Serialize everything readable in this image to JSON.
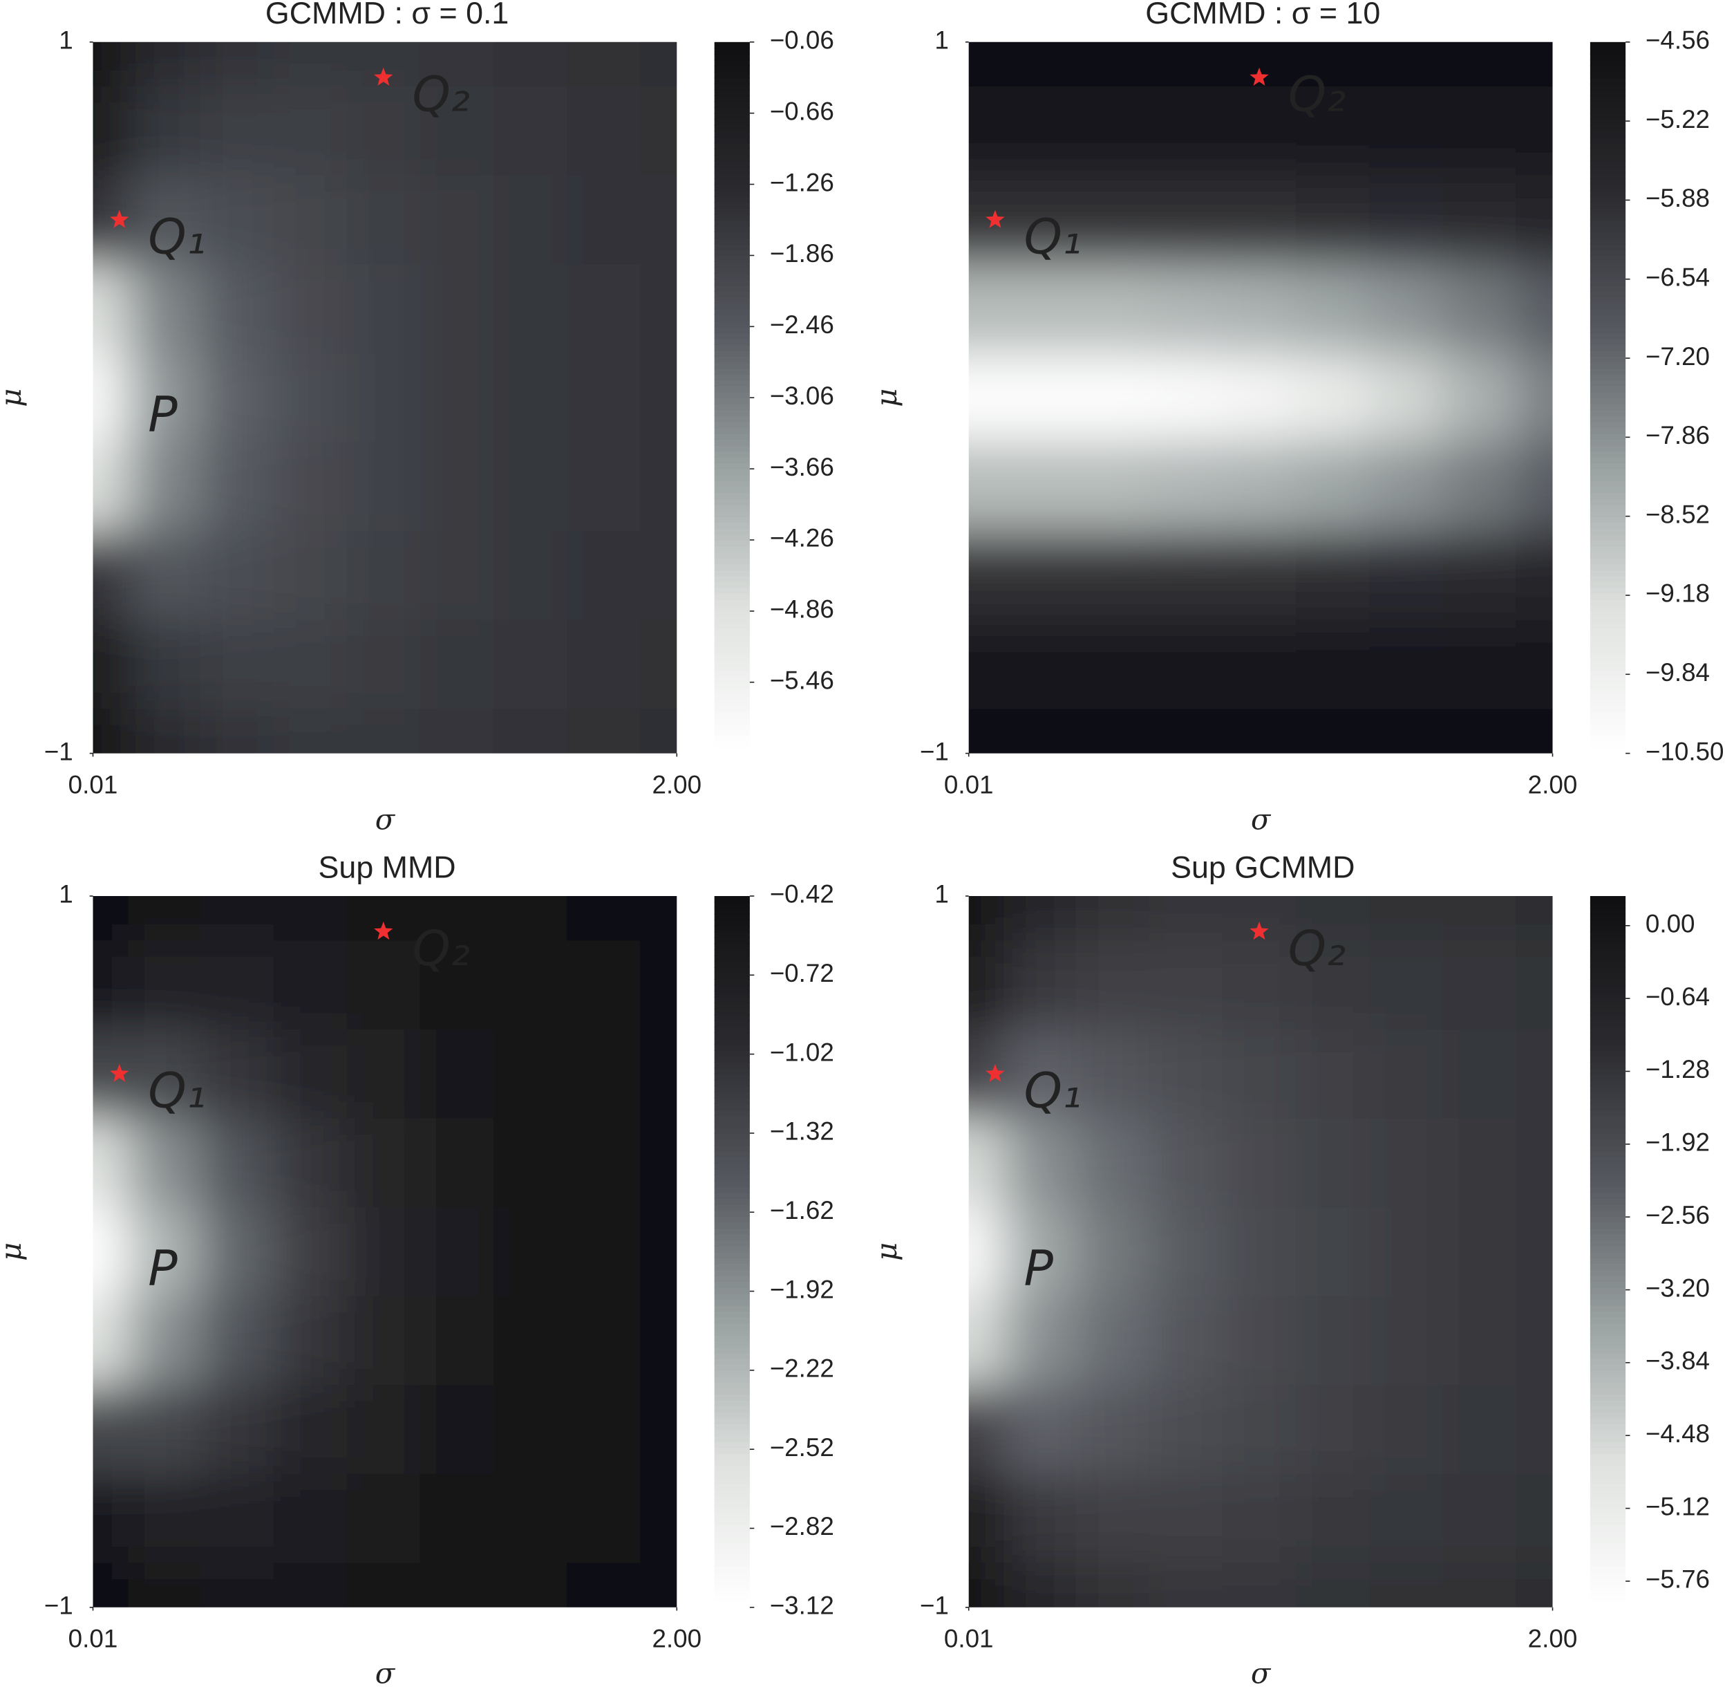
{
  "chart_data": [
    {
      "type": "contour",
      "title": "GCMMD : σ = 0.1",
      "xlabel": "σ",
      "ylabel": "μ",
      "xlim": [
        0.01,
        2
      ],
      "xticks": [
        {
          "value": 0.01,
          "label": "0.01"
        },
        {
          "value": 2,
          "label": "2.00"
        }
      ],
      "ylim": [
        -1,
        1
      ],
      "yticks": [
        {
          "value": -1,
          "label": "−1"
        },
        1
      ],
      "x": [
        0.01,
        0.25,
        0.5,
        0.75,
        1,
        1.25,
        1.5,
        1.75,
        2
      ],
      "y": [
        1,
        0.75,
        0.5,
        0.25,
        0,
        -0.25,
        -0.5,
        -0.75,
        -1
      ],
      "z": [
        [
          -0.3,
          -1.2,
          -1.5,
          -1.6,
          -1.6,
          -1.55,
          -1.5,
          -1.45,
          -1.4
        ],
        [
          -0.5,
          -1.6,
          -1.8,
          -1.8,
          -1.7,
          -1.6,
          -1.55,
          -1.5,
          -1.45
        ],
        [
          -1.5,
          -2.4,
          -2.2,
          -2.0,
          -1.8,
          -1.7,
          -1.6,
          -1.5,
          -1.5
        ],
        [
          -4.8,
          -3.2,
          -2.5,
          -2.1,
          -1.9,
          -1.7,
          -1.6,
          -1.55,
          -1.5
        ],
        [
          -5.8,
          -3.5,
          -2.6,
          -2.2,
          -1.9,
          -1.7,
          -1.6,
          -1.55,
          -1.5
        ],
        [
          -4.8,
          -3.2,
          -2.5,
          -2.1,
          -1.9,
          -1.7,
          -1.6,
          -1.55,
          -1.5
        ],
        [
          -1.5,
          -2.4,
          -2.2,
          -2.0,
          -1.8,
          -1.7,
          -1.6,
          -1.5,
          -1.5
        ],
        [
          -0.5,
          -1.6,
          -1.8,
          -1.8,
          -1.7,
          -1.6,
          -1.55,
          -1.5,
          -1.45
        ],
        [
          -0.3,
          -1.2,
          -1.5,
          -1.6,
          -1.6,
          -1.55,
          -1.5,
          -1.45,
          -1.4
        ]
      ],
      "zlim": [
        -6.06,
        -0.06
      ],
      "zticks": [
        {
          "value": -0.06,
          "label": "−0.06"
        },
        {
          "value": -0.66,
          "label": "−0.66"
        },
        {
          "value": -1.26,
          "label": "−1.26"
        },
        {
          "value": -1.86,
          "label": "−1.86"
        },
        {
          "value": -2.46,
          "label": "−2.46"
        },
        {
          "value": -3.06,
          "label": "−3.06"
        },
        {
          "value": -3.66,
          "label": "−3.66"
        },
        {
          "value": -4.26,
          "label": "−4.26"
        },
        {
          "value": -4.86,
          "label": "−4.86"
        },
        {
          "value": -5.46,
          "label": "−5.46"
        }
      ],
      "colormap": [
        "#ffffff",
        "#dfe2df",
        "#9aa2a2",
        "#55585e",
        "#2a2a2e",
        "#101012"
      ],
      "points": [
        {
          "label": "P",
          "x": 0.1,
          "y": 0,
          "color": "#ffffff",
          "marker": "none"
        },
        {
          "label": "Q₁",
          "x": 0.1,
          "y": 0.5,
          "color": "#f03030",
          "marker": "star"
        },
        {
          "label": "Q₂",
          "x": 1,
          "y": 0.9,
          "color": "#f03030",
          "marker": "star"
        }
      ]
    },
    {
      "type": "contour",
      "title": "GCMMD : σ = 10",
      "xlabel": "σ",
      "ylabel": "μ",
      "xlim": [
        0.01,
        2
      ],
      "xticks": [
        {
          "value": 0.01,
          "label": "0.01"
        },
        {
          "value": 2,
          "label": "2.00"
        }
      ],
      "ylim": [
        -1,
        1
      ],
      "yticks": [
        {
          "value": -1,
          "label": "−1"
        },
        1
      ],
      "x": [
        0.01,
        0.25,
        0.5,
        0.75,
        1,
        1.25,
        1.5,
        1.75,
        2
      ],
      "y": [
        1,
        0.75,
        0.5,
        0.25,
        0,
        -0.25,
        -0.5,
        -0.75,
        -1
      ],
      "z": [
        [
          -4.6,
          -4.6,
          -4.6,
          -4.6,
          -4.6,
          -4.6,
          -4.6,
          -4.6,
          -4.6
        ],
        [
          -4.9,
          -4.9,
          -4.9,
          -4.9,
          -4.9,
          -4.9,
          -4.9,
          -4.9,
          -4.9
        ],
        [
          -5.9,
          -5.9,
          -5.9,
          -5.9,
          -5.9,
          -5.85,
          -5.8,
          -5.7,
          -5.6
        ],
        [
          -8.6,
          -8.6,
          -8.6,
          -8.5,
          -8.4,
          -8.2,
          -7.9,
          -7.5,
          -7.0
        ],
        [
          -10.4,
          -10.4,
          -10.4,
          -10.3,
          -10.1,
          -9.7,
          -9.1,
          -8.4,
          -7.6
        ],
        [
          -8.6,
          -8.6,
          -8.6,
          -8.5,
          -8.4,
          -8.2,
          -7.9,
          -7.5,
          -7.0
        ],
        [
          -5.9,
          -5.9,
          -5.9,
          -5.9,
          -5.9,
          -5.85,
          -5.8,
          -5.7,
          -5.6
        ],
        [
          -4.9,
          -4.9,
          -4.9,
          -4.9,
          -4.9,
          -4.9,
          -4.9,
          -4.9,
          -4.9
        ],
        [
          -4.6,
          -4.6,
          -4.6,
          -4.6,
          -4.6,
          -4.6,
          -4.6,
          -4.6,
          -4.6
        ]
      ],
      "zlim": [
        -10.5,
        -4.56
      ],
      "zticks": [
        {
          "value": -4.56,
          "label": "−4.56"
        },
        {
          "value": -5.22,
          "label": "−5.22"
        },
        {
          "value": -5.88,
          "label": "−5.88"
        },
        {
          "value": -6.54,
          "label": "−6.54"
        },
        {
          "value": -7.2,
          "label": "−7.20"
        },
        {
          "value": -7.86,
          "label": "−7.86"
        },
        {
          "value": -8.52,
          "label": "−8.52"
        },
        {
          "value": -9.18,
          "label": "−9.18"
        },
        {
          "value": -9.84,
          "label": "−9.84"
        },
        {
          "value": -10.5,
          "label": "−10.50"
        }
      ],
      "colormap": [
        "#ffffff",
        "#dfe2df",
        "#9aa2a2",
        "#55585e",
        "#2a2a2e",
        "#101012"
      ],
      "points": [
        {
          "label": "Q₁",
          "x": 0.1,
          "y": 0.5,
          "color": "#f03030",
          "marker": "star"
        },
        {
          "label": "Q₂",
          "x": 1,
          "y": 0.9,
          "color": "#f03030",
          "marker": "star"
        }
      ]
    },
    {
      "type": "contour",
      "title": "Sup MMD",
      "xlabel": "σ",
      "ylabel": "μ",
      "xlim": [
        0.01,
        2
      ],
      "xticks": [
        {
          "value": 0.01,
          "label": "0.01"
        },
        {
          "value": 2,
          "label": "2.00"
        }
      ],
      "ylim": [
        -1,
        1
      ],
      "yticks": [
        {
          "value": -1,
          "label": "−1"
        },
        1
      ],
      "x": [
        0.01,
        0.25,
        0.5,
        0.75,
        1,
        1.25,
        1.5,
        1.75,
        2
      ],
      "y": [
        1,
        0.75,
        0.5,
        0.25,
        0,
        -0.25,
        -0.5,
        -0.75,
        -1
      ],
      "z": [
        [
          -0.45,
          -0.55,
          -0.6,
          -0.58,
          -0.53,
          -0.5,
          -0.47,
          -0.45,
          -0.43
        ],
        [
          -0.6,
          -0.8,
          -0.8,
          -0.7,
          -0.62,
          -0.55,
          -0.5,
          -0.46,
          -0.44
        ],
        [
          -1.3,
          -1.3,
          -1.1,
          -0.9,
          -0.75,
          -0.6,
          -0.52,
          -0.47,
          -0.44
        ],
        [
          -2.6,
          -1.9,
          -1.45,
          -1.1,
          -0.85,
          -0.65,
          -0.55,
          -0.48,
          -0.45
        ],
        [
          -3.1,
          -2.2,
          -1.6,
          -1.2,
          -0.9,
          -0.7,
          -0.55,
          -0.48,
          -0.45
        ],
        [
          -2.6,
          -1.9,
          -1.45,
          -1.1,
          -0.85,
          -0.65,
          -0.55,
          -0.48,
          -0.45
        ],
        [
          -1.3,
          -1.3,
          -1.1,
          -0.9,
          -0.75,
          -0.6,
          -0.52,
          -0.47,
          -0.44
        ],
        [
          -0.6,
          -0.8,
          -0.8,
          -0.7,
          -0.62,
          -0.55,
          -0.5,
          -0.46,
          -0.44
        ],
        [
          -0.45,
          -0.55,
          -0.6,
          -0.58,
          -0.53,
          -0.5,
          -0.47,
          -0.45,
          -0.43
        ]
      ],
      "zlim": [
        -3.12,
        -0.42
      ],
      "zticks": [
        {
          "value": -0.42,
          "label": "−0.42"
        },
        {
          "value": -0.72,
          "label": "−0.72"
        },
        {
          "value": -1.02,
          "label": "−1.02"
        },
        {
          "value": -1.32,
          "label": "−1.32"
        },
        {
          "value": -1.62,
          "label": "−1.62"
        },
        {
          "value": -1.92,
          "label": "−1.92"
        },
        {
          "value": -2.22,
          "label": "−2.22"
        },
        {
          "value": -2.52,
          "label": "−2.52"
        },
        {
          "value": -2.82,
          "label": "−2.82"
        },
        {
          "value": -3.12,
          "label": "−3.12"
        }
      ],
      "colormap": [
        "#ffffff",
        "#dfe2df",
        "#9aa2a2",
        "#55585e",
        "#2a2a2e",
        "#101012"
      ],
      "points": [
        {
          "label": "P",
          "x": 0.1,
          "y": 0,
          "color": "#ffffff",
          "marker": "none"
        },
        {
          "label": "Q₁",
          "x": 0.1,
          "y": 0.5,
          "color": "#f03030",
          "marker": "star"
        },
        {
          "label": "Q₂",
          "x": 1,
          "y": 0.9,
          "color": "#f03030",
          "marker": "star"
        }
      ]
    },
    {
      "type": "contour",
      "title": "Sup GCMMD",
      "xlabel": "σ",
      "ylabel": "μ",
      "xlim": [
        0.01,
        2
      ],
      "xticks": [
        {
          "value": 0.01,
          "label": "0.01"
        },
        {
          "value": 2,
          "label": "2.00"
        }
      ],
      "ylim": [
        -1,
        1
      ],
      "yticks": [
        {
          "value": -1,
          "label": "−1"
        },
        1
      ],
      "x": [
        0.01,
        0.25,
        0.5,
        0.75,
        1,
        1.25,
        1.5,
        1.75,
        2
      ],
      "y": [
        1,
        0.75,
        0.5,
        0.25,
        0,
        -0.25,
        -0.5,
        -0.75,
        -1
      ],
      "z": [
        [
          0.1,
          -0.9,
          -1.2,
          -1.3,
          -1.3,
          -1.25,
          -1.2,
          -1.15,
          -1.1
        ],
        [
          -0.2,
          -1.4,
          -1.6,
          -1.6,
          -1.5,
          -1.4,
          -1.35,
          -1.3,
          -1.25
        ],
        [
          -1.6,
          -2.4,
          -2.2,
          -1.95,
          -1.75,
          -1.6,
          -1.45,
          -1.35,
          -1.3
        ],
        [
          -4.6,
          -3.2,
          -2.6,
          -2.2,
          -1.85,
          -1.65,
          -1.5,
          -1.4,
          -1.3
        ],
        [
          -5.7,
          -3.6,
          -2.8,
          -2.3,
          -1.9,
          -1.7,
          -1.5,
          -1.4,
          -1.3
        ],
        [
          -4.6,
          -3.2,
          -2.6,
          -2.2,
          -1.85,
          -1.65,
          -1.5,
          -1.4,
          -1.3
        ],
        [
          -1.6,
          -2.4,
          -2.2,
          -1.95,
          -1.75,
          -1.6,
          -1.45,
          -1.35,
          -1.3
        ],
        [
          -0.2,
          -1.4,
          -1.6,
          -1.6,
          -1.5,
          -1.4,
          -1.35,
          -1.3,
          -1.25
        ],
        [
          0.1,
          -0.9,
          -1.2,
          -1.3,
          -1.3,
          -1.25,
          -1.2,
          -1.15,
          -1.1
        ]
      ],
      "zlim": [
        -5.99,
        0.26
      ],
      "zticks": [
        {
          "value": 0,
          "label": "0.00"
        },
        {
          "value": -0.64,
          "label": "−0.64"
        },
        {
          "value": -1.28,
          "label": "−1.28"
        },
        {
          "value": -1.92,
          "label": "−1.92"
        },
        {
          "value": -2.56,
          "label": "−2.56"
        },
        {
          "value": -3.2,
          "label": "−3.20"
        },
        {
          "value": -3.84,
          "label": "−3.84"
        },
        {
          "value": -4.48,
          "label": "−4.48"
        },
        {
          "value": -5.12,
          "label": "−5.12"
        },
        {
          "value": -5.76,
          "label": "−5.76"
        }
      ],
      "colormap": [
        "#ffffff",
        "#dfe2df",
        "#9aa2a2",
        "#55585e",
        "#2a2a2e",
        "#101012"
      ],
      "points": [
        {
          "label": "P",
          "x": 0.1,
          "y": 0,
          "color": "#ffffff",
          "marker": "none"
        },
        {
          "label": "Q₁",
          "x": 0.1,
          "y": 0.5,
          "color": "#f03030",
          "marker": "star"
        },
        {
          "label": "Q₂",
          "x": 1,
          "y": 0.9,
          "color": "#f03030",
          "marker": "star"
        }
      ]
    }
  ]
}
